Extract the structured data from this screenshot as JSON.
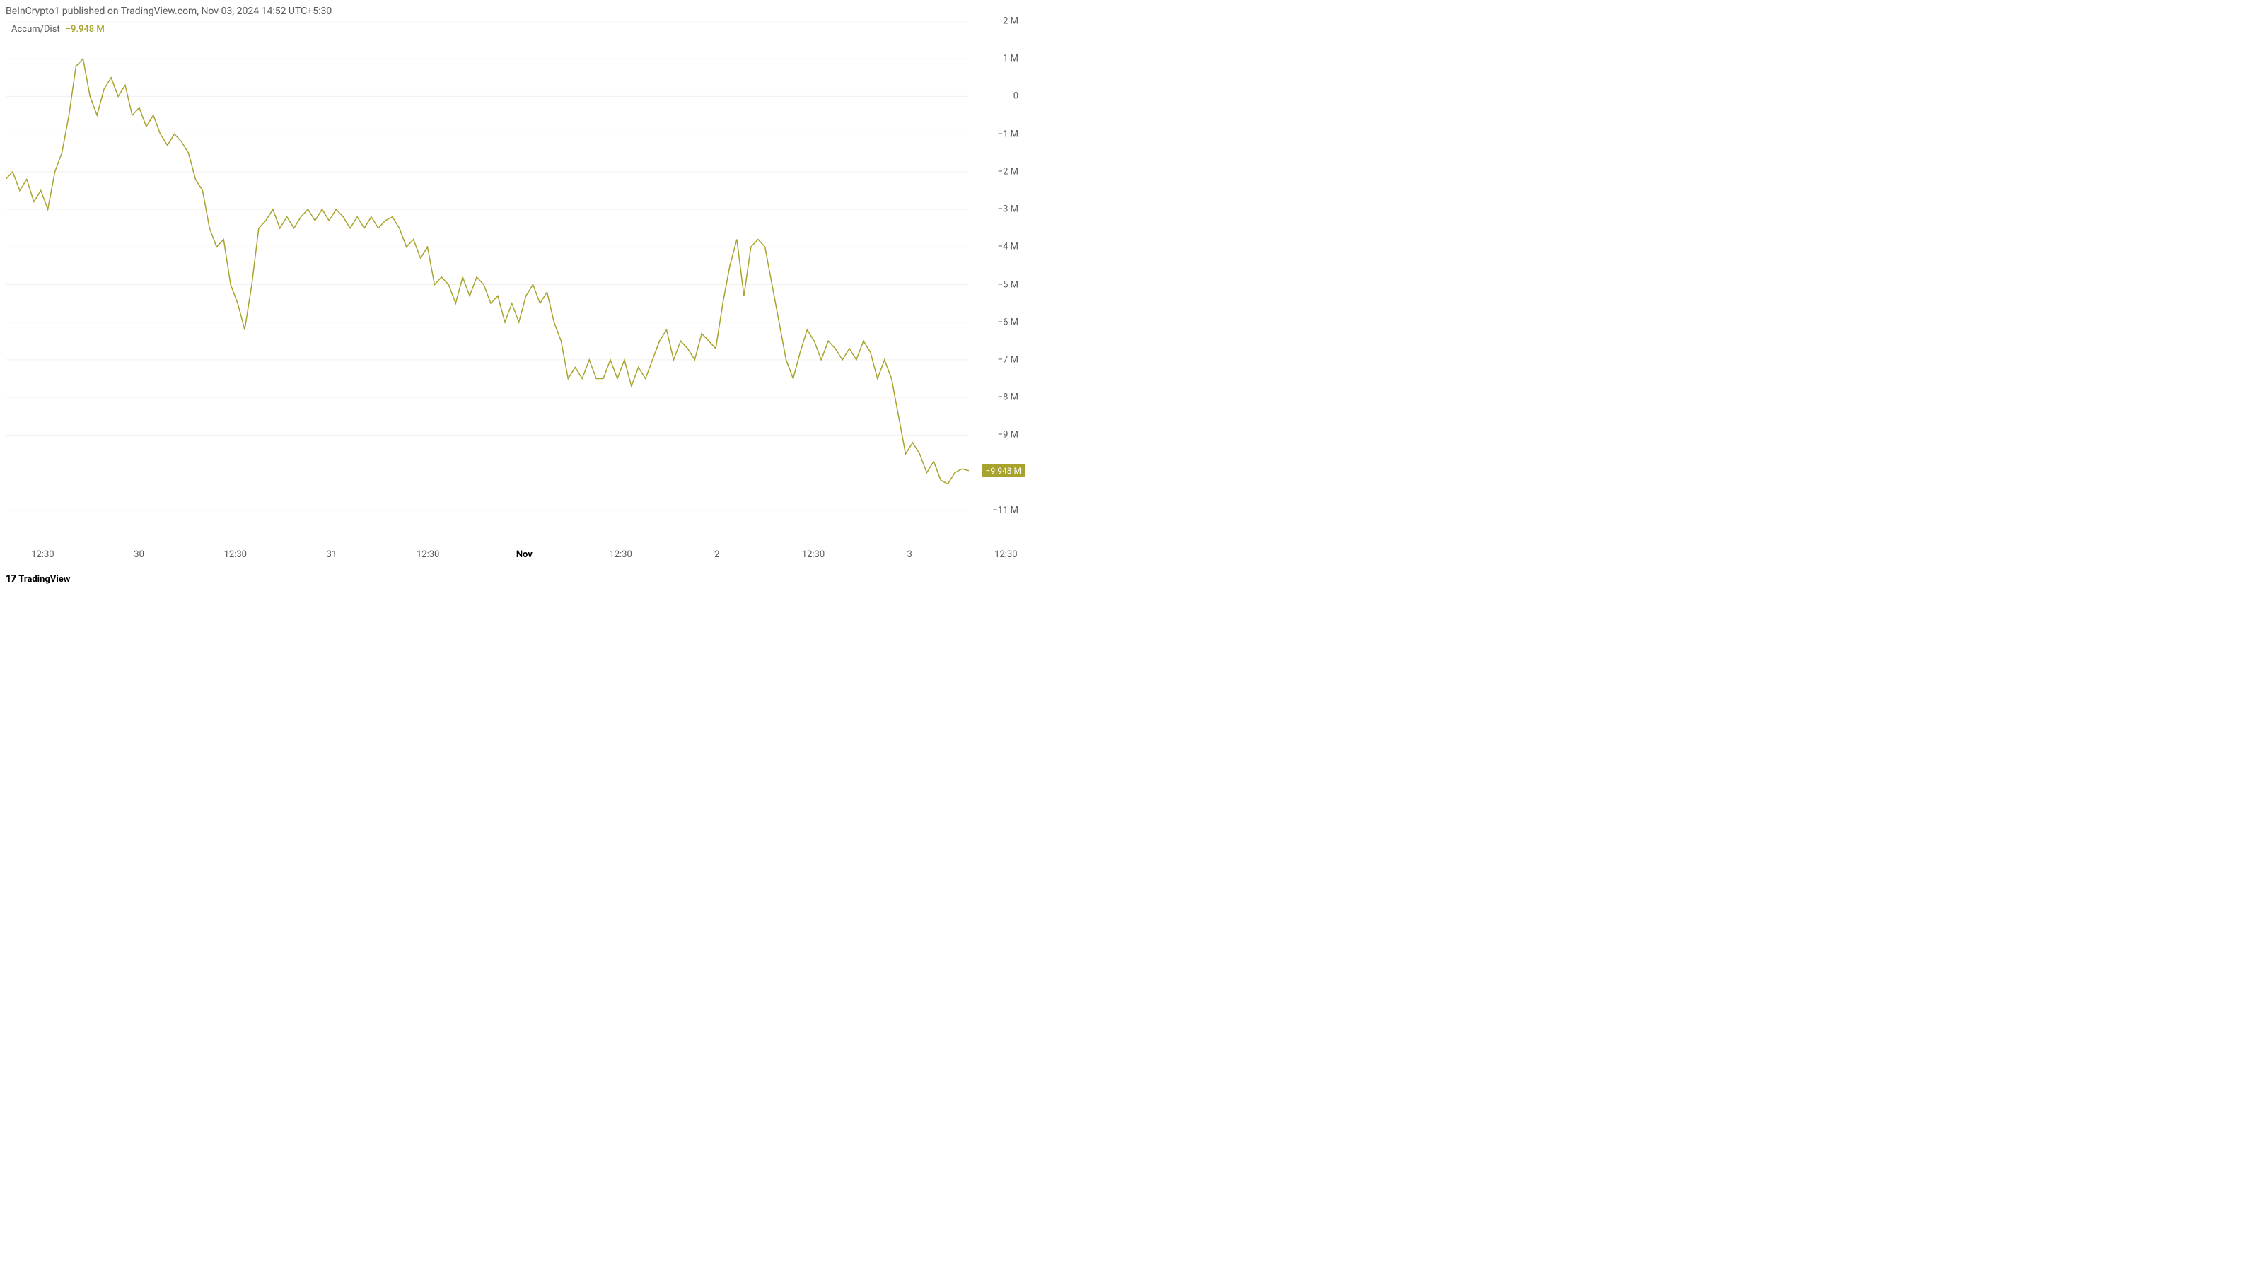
{
  "header": {
    "publisher_text": "BeInCrypto1 published on TradingView.com, Nov 03, 2024 14:52 UTC+5:30"
  },
  "indicator": {
    "name": "Accum/Dist",
    "value": "−9.948 M"
  },
  "chart": {
    "type": "line",
    "line_color": "#a8a32d",
    "line_width": 1.5,
    "background_color": "#ffffff",
    "grid_color": "#f0f0f0",
    "y_axis": {
      "min": -12,
      "max": 2,
      "ticks": [
        {
          "value": 2,
          "label": "2 M"
        },
        {
          "value": 1,
          "label": "1 M"
        },
        {
          "value": 0,
          "label": "0"
        },
        {
          "value": -1,
          "label": "−1 M"
        },
        {
          "value": -2,
          "label": "−2 M"
        },
        {
          "value": -3,
          "label": "−3 M"
        },
        {
          "value": -4,
          "label": "−4 M"
        },
        {
          "value": -5,
          "label": "−5 M"
        },
        {
          "value": -6,
          "label": "−6 M"
        },
        {
          "value": -7,
          "label": "−7 M"
        },
        {
          "value": -8,
          "label": "−8 M"
        },
        {
          "value": -9,
          "label": "−9 M"
        },
        {
          "value": -11,
          "label": "−11 M"
        }
      ],
      "current_value": -9.948,
      "current_label": "−9.948 M"
    },
    "x_axis": {
      "min": 0,
      "max": 130,
      "labels": [
        {
          "pos": 5,
          "text": "12:30",
          "bold": false
        },
        {
          "pos": 18,
          "text": "30",
          "bold": false
        },
        {
          "pos": 31,
          "text": "12:30",
          "bold": false
        },
        {
          "pos": 44,
          "text": "31",
          "bold": false
        },
        {
          "pos": 57,
          "text": "12:30",
          "bold": false
        },
        {
          "pos": 70,
          "text": "Nov",
          "bold": true
        },
        {
          "pos": 83,
          "text": "12:30",
          "bold": false
        },
        {
          "pos": 96,
          "text": "2",
          "bold": false
        },
        {
          "pos": 109,
          "text": "12:30",
          "bold": false
        },
        {
          "pos": 122,
          "text": "3",
          "bold": false
        },
        {
          "pos": 135,
          "text": "12:30",
          "bold": false
        }
      ]
    },
    "data": [
      -2.2,
      -2.0,
      -2.5,
      -2.2,
      -2.8,
      -2.5,
      -3.0,
      -2.0,
      -1.5,
      -0.5,
      0.8,
      1.0,
      0.0,
      -0.5,
      0.2,
      0.5,
      0.0,
      0.3,
      -0.5,
      -0.3,
      -0.8,
      -0.5,
      -1.0,
      -1.3,
      -1.0,
      -1.2,
      -1.5,
      -2.2,
      -2.5,
      -3.5,
      -4.0,
      -3.8,
      -5.0,
      -5.5,
      -6.2,
      -5.0,
      -3.5,
      -3.3,
      -3.0,
      -3.5,
      -3.2,
      -3.5,
      -3.2,
      -3.0,
      -3.3,
      -3.0,
      -3.3,
      -3.0,
      -3.2,
      -3.5,
      -3.2,
      -3.5,
      -3.2,
      -3.5,
      -3.3,
      -3.2,
      -3.5,
      -4.0,
      -3.8,
      -4.3,
      -4.0,
      -5.0,
      -4.8,
      -5.0,
      -5.5,
      -4.8,
      -5.3,
      -4.8,
      -5.0,
      -5.5,
      -5.3,
      -6.0,
      -5.5,
      -6.0,
      -5.3,
      -5.0,
      -5.5,
      -5.2,
      -6.0,
      -6.5,
      -7.5,
      -7.2,
      -7.5,
      -7.0,
      -7.5,
      -7.5,
      -7.0,
      -7.5,
      -7.0,
      -7.7,
      -7.2,
      -7.5,
      -7.0,
      -6.5,
      -6.2,
      -7.0,
      -6.5,
      -6.7,
      -7.0,
      -6.3,
      -6.5,
      -6.7,
      -5.5,
      -4.5,
      -3.8,
      -5.3,
      -4.0,
      -3.8,
      -4.0,
      -5.0,
      -6.0,
      -7.0,
      -7.5,
      -6.8,
      -6.2,
      -6.5,
      -7.0,
      -6.5,
      -6.7,
      -7.0,
      -6.7,
      -7.0,
      -6.5,
      -6.8,
      -7.5,
      -7.0,
      -7.5,
      -8.5,
      -9.5,
      -9.2,
      -9.5,
      -10.0,
      -9.7,
      -10.2,
      -10.3,
      -10.0,
      -9.9,
      -9.948
    ]
  },
  "footer": {
    "logo": "17",
    "brand": "TradingView"
  }
}
